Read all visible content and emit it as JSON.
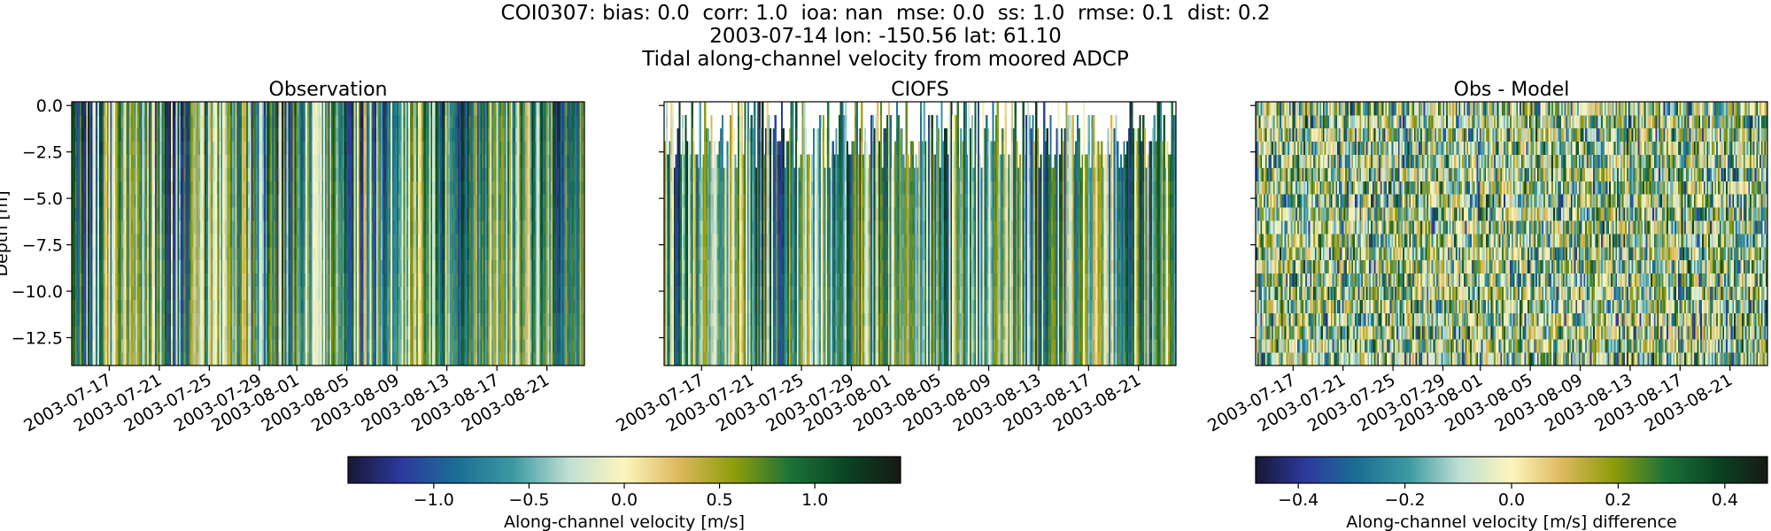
{
  "header": {
    "line1": "COI0307: bias: 0.0  corr: 1.0  ioa: nan  mse: 0.0  ss: 1.0  rmse: 0.1  dist: 0.2",
    "line2": "2003-07-14 lon: -150.56 lat: 61.10",
    "line3": "Tidal along-channel velocity from moored ADCP"
  },
  "chart_data": [
    {
      "type": "heatmap",
      "title": "Observation",
      "ylabel": "Depth [m]",
      "xlim": [
        "2003-07-14",
        "2003-08-24"
      ],
      "ylim": [
        -14.0,
        0.2
      ],
      "xtick_labels": [
        "2003-07-17",
        "2003-07-21",
        "2003-07-25",
        "2003-07-29",
        "2003-08-01",
        "2003-08-05",
        "2003-08-09",
        "2003-08-13",
        "2003-08-17",
        "2003-08-21"
      ],
      "ytick_values": [
        0.0,
        -2.5,
        -5.0,
        -7.5,
        -10.0,
        -12.5
      ],
      "ytick_labels": [
        "0.0",
        "−2.5",
        "−5.0",
        "−7.5",
        "−10.0",
        "−12.5"
      ],
      "value_range": [
        -1.45,
        1.45
      ],
      "colorbar": "velocity"
    },
    {
      "type": "heatmap",
      "title": "CIOFS",
      "xlim": [
        "2003-07-14",
        "2003-08-24"
      ],
      "ylim": [
        -14.0,
        0.2
      ],
      "xtick_labels": [
        "2003-07-17",
        "2003-07-21",
        "2003-07-25",
        "2003-07-29",
        "2003-08-01",
        "2003-08-05",
        "2003-08-09",
        "2003-08-13",
        "2003-08-17",
        "2003-08-21"
      ],
      "value_range": [
        -1.45,
        1.45
      ],
      "colorbar": "velocity"
    },
    {
      "type": "heatmap",
      "title": "Obs - Model",
      "xlim": [
        "2003-07-14",
        "2003-08-24"
      ],
      "ylim": [
        -14.0,
        0.2
      ],
      "xtick_labels": [
        "2003-07-17",
        "2003-07-21",
        "2003-07-25",
        "2003-07-29",
        "2003-08-01",
        "2003-08-05",
        "2003-08-09",
        "2003-08-13",
        "2003-08-17",
        "2003-08-21"
      ],
      "value_range": [
        -0.48,
        0.48
      ],
      "colorbar": "difference"
    }
  ],
  "colorbars": {
    "velocity": {
      "label": "Along-channel velocity [m/s]",
      "range": [
        -1.45,
        1.45
      ],
      "tick_values": [
        -1.0,
        -0.5,
        0.0,
        0.5,
        1.0
      ],
      "tick_labels": [
        "−1.0",
        "−0.5",
        "0.0",
        "0.5",
        "1.0"
      ]
    },
    "difference": {
      "label": "Along-channel velocity [m/s] difference",
      "range": [
        -0.48,
        0.48
      ],
      "tick_values": [
        -0.4,
        -0.2,
        0.0,
        0.2,
        0.4
      ],
      "tick_labels": [
        "−0.4",
        "−0.2",
        "0.0",
        "0.2",
        "0.4"
      ]
    }
  },
  "colormap": {
    "name": "delta",
    "stops": [
      "#171735",
      "#2e3a9f",
      "#1a6f94",
      "#3d9aa3",
      "#bfe0d4",
      "#fdf5bd",
      "#dcb85c",
      "#8d9c0b",
      "#1d7237",
      "#0a4424",
      "#161a12"
    ]
  }
}
